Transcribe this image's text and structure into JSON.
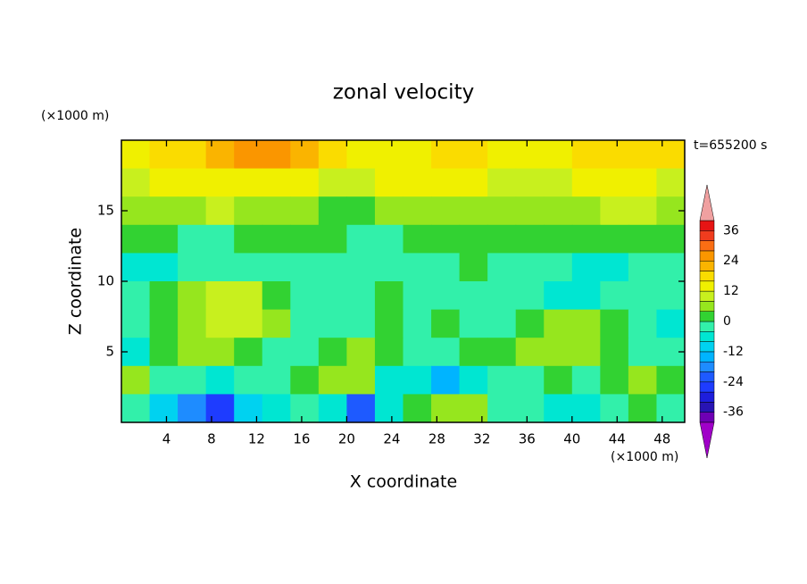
{
  "chart_data": {
    "type": "contour",
    "title": "zonal velocity",
    "x_label": "X coordinate",
    "y_label": "Z coordinate",
    "x_unit": "(×1000 m)",
    "y_unit": "(×1000 m)",
    "time_label": "t=655200 s",
    "xlim": [
      0,
      50
    ],
    "ylim": [
      0,
      20
    ],
    "xticks": [
      4,
      8,
      12,
      16,
      20,
      24,
      28,
      32,
      36,
      40,
      44,
      48
    ],
    "yticks": [
      5,
      10,
      15
    ],
    "x": [
      1.25,
      3.75,
      6.25,
      8.75,
      11.25,
      13.75,
      16.25,
      18.75,
      21.25,
      23.75,
      26.25,
      28.75,
      31.25,
      33.75,
      36.25,
      38.75,
      41.25,
      43.75,
      46.25,
      48.75
    ],
    "y": [
      19,
      17,
      15,
      13,
      11,
      9,
      7,
      5,
      3,
      1
    ],
    "z": [
      [
        14,
        16,
        18,
        22,
        24,
        24,
        22,
        18,
        14,
        14,
        14,
        16,
        16,
        14,
        14,
        14,
        16,
        18,
        18,
        16
      ],
      [
        10,
        12,
        12,
        14,
        14,
        12,
        12,
        10,
        10,
        12,
        12,
        12,
        12,
        10,
        10,
        10,
        12,
        12,
        12,
        10
      ],
      [
        6,
        6,
        6,
        8,
        6,
        6,
        4,
        2,
        2,
        4,
        6,
        6,
        6,
        4,
        6,
        6,
        6,
        8,
        8,
        6
      ],
      [
        0,
        2,
        -2,
        -2,
        0,
        0,
        2,
        2,
        -2,
        -2,
        0,
        2,
        2,
        2,
        2,
        2,
        2,
        0,
        2,
        2
      ],
      [
        -6,
        -6,
        -2,
        -2,
        -2,
        -2,
        -2,
        -2,
        -2,
        -2,
        -2,
        -2,
        0,
        -2,
        -2,
        -2,
        -6,
        -6,
        -2,
        -2
      ],
      [
        -2,
        2,
        6,
        8,
        8,
        2,
        -2,
        -2,
        -2,
        0,
        -2,
        -2,
        -2,
        -2,
        -2,
        -6,
        -6,
        -2,
        -2,
        -2
      ],
      [
        -2,
        2,
        6,
        10,
        8,
        4,
        -2,
        -2,
        -2,
        0,
        -2,
        2,
        -2,
        -2,
        2,
        6,
        6,
        2,
        -2,
        -6
      ],
      [
        -6,
        2,
        6,
        6,
        2,
        -2,
        -2,
        2,
        6,
        2,
        -2,
        -2,
        2,
        2,
        6,
        6,
        6,
        2,
        -2,
        -2
      ],
      [
        6,
        -2,
        -2,
        -6,
        -2,
        -2,
        2,
        6,
        6,
        -6,
        -6,
        -14,
        -6,
        -2,
        -2,
        2,
        -2,
        2,
        6,
        2
      ],
      [
        -2,
        -10,
        -18,
        -26,
        -10,
        -6,
        -2,
        -6,
        -22,
        -6,
        2,
        6,
        6,
        -2,
        -2,
        -6,
        -6,
        -2,
        2,
        -2
      ]
    ],
    "levels": [
      -40,
      -36,
      -32,
      -28,
      -24,
      -20,
      -16,
      -12,
      -8,
      -4,
      0,
      4,
      8,
      12,
      16,
      20,
      24,
      28,
      32,
      36,
      40
    ],
    "colors": [
      "#a000c8",
      "#6e00b4",
      "#2814b4",
      "#1e1edc",
      "#1e3cff",
      "#1e5aff",
      "#1e8cff",
      "#00b4ff",
      "#00d2f0",
      "#00e6d2",
      "#32f0aa",
      "#32d232",
      "#96e61e",
      "#c8f01e",
      "#f0f000",
      "#fadc00",
      "#fab400",
      "#fa9600",
      "#fa6e14",
      "#f03c1e",
      "#e61414",
      "#f0a0a0"
    ],
    "colorbar_ticks": [
      36,
      24,
      12,
      0,
      -12,
      -24,
      -36
    ]
  }
}
